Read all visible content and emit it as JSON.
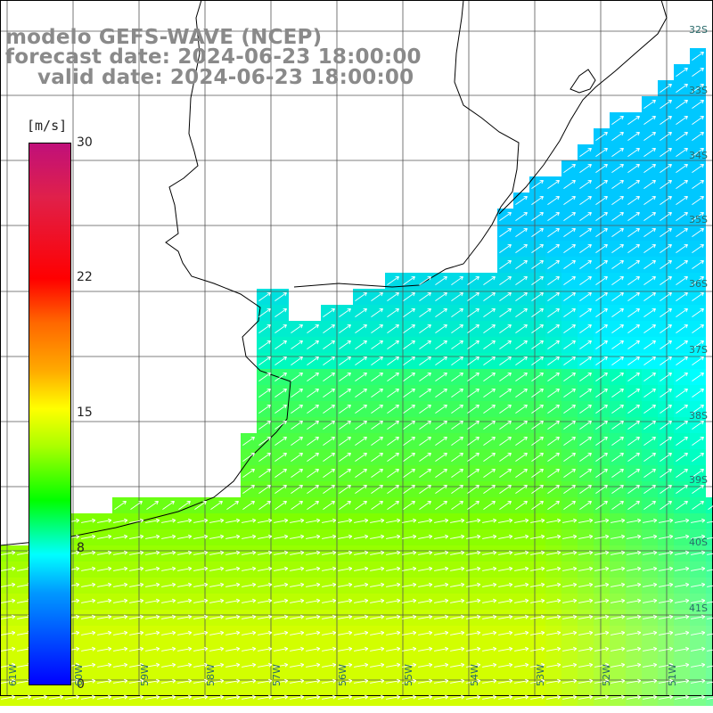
{
  "header": {
    "model": "modelo GEFS-WAVE (NCEP)",
    "forecast_date": "forecast date: 2024-06-23 18:00:00",
    "valid_date": "valid date: 2024-06-23 18:00:00"
  },
  "legend": {
    "units": "[m/s]",
    "ticks": [
      {
        "label": "30",
        "value": 30
      },
      {
        "label": "22",
        "value": 22
      },
      {
        "label": "15",
        "value": 15
      },
      {
        "label": "8",
        "value": 8
      },
      {
        "label": "0",
        "value": 0
      }
    ]
  },
  "lat_labels": [
    "32S",
    "33S",
    "34S",
    "35S",
    "36S",
    "37S",
    "38S",
    "39S",
    "40S",
    "41S"
  ],
  "lon_labels": [
    "61W",
    "60W",
    "59W",
    "58W",
    "57W",
    "56W",
    "55W",
    "54W",
    "53W",
    "52W",
    "51W"
  ],
  "colors": {
    "land": "#ffffff",
    "coastline": "#000000",
    "grid": "#555555",
    "arrows": "#ffffff",
    "title_text": "#8a8a8a"
  }
}
